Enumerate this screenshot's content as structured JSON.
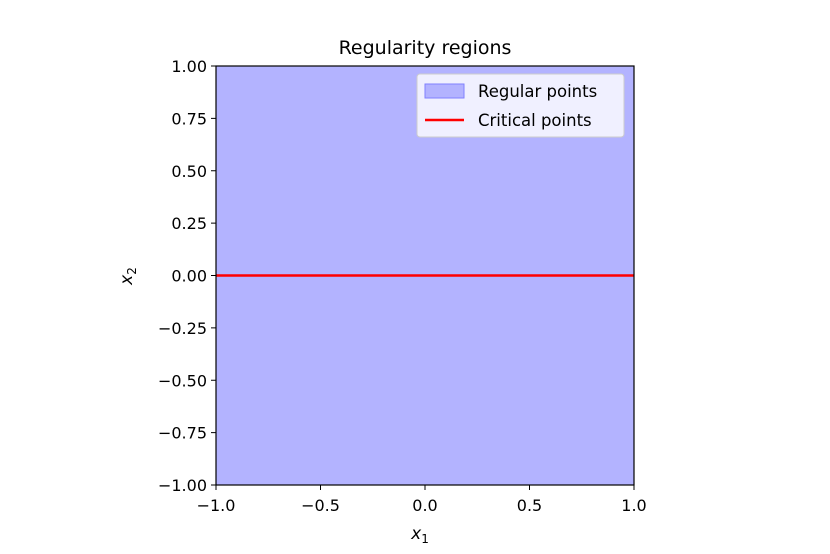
{
  "chart_data": {
    "type": "area",
    "title": "Regularity regions",
    "xlabel": "x",
    "xlabel_sub": "1",
    "ylabel": "x",
    "ylabel_sub": "2",
    "xlim": [
      -1.0,
      1.0
    ],
    "ylim": [
      -1.0,
      1.0
    ],
    "xticks": [
      -1.0,
      -0.5,
      0.0,
      0.5,
      1.0
    ],
    "xtick_labels": [
      "−1.0",
      "−0.5",
      "0.0",
      "0.5",
      "1.0"
    ],
    "yticks": [
      1.0,
      0.75,
      0.5,
      0.25,
      0.0,
      -0.25,
      -0.5,
      -0.75,
      -1.0
    ],
    "ytick_labels": [
      "1.00",
      "0.75",
      "0.50",
      "0.25",
      "0.00",
      "−0.25",
      "−0.50",
      "−0.75",
      "−1.00"
    ],
    "grid": false,
    "legend_position": "top-right",
    "series": [
      {
        "name": "Regular points",
        "kind": "region",
        "x": [
          -1.0,
          1.0
        ],
        "y": [
          -1.0,
          1.0
        ],
        "color": "#b3b3ff",
        "edge_color": "#8080ff"
      },
      {
        "name": "Critical points",
        "kind": "line",
        "x": [
          -1.0,
          1.0
        ],
        "y": [
          0.0,
          0.0
        ],
        "color": "#ff0000"
      }
    ]
  }
}
